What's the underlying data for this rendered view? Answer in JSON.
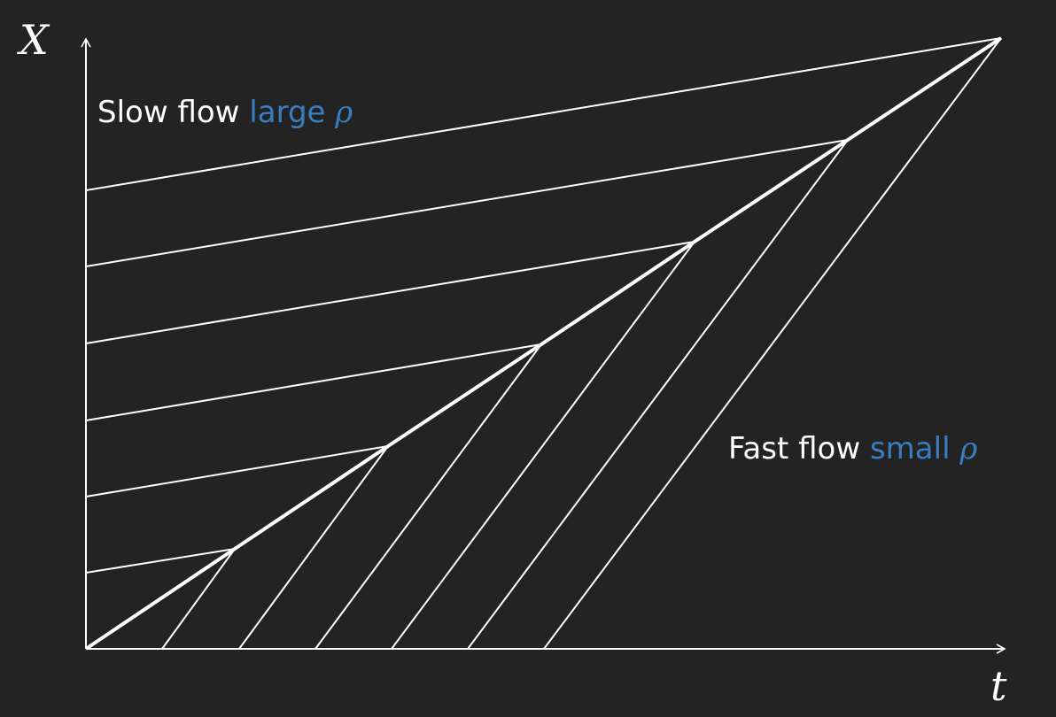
{
  "axes": {
    "x_label": "X",
    "t_label": "t"
  },
  "annotations": {
    "slow": {
      "text": "Slow flow",
      "accent": "large",
      "symbol": "ρ"
    },
    "fast": {
      "text": "Fast flow",
      "accent": "small",
      "symbol": "ρ"
    }
  },
  "colors": {
    "background": "#232323",
    "lines": "#ffffff",
    "accent": "#3a7dc0"
  }
}
